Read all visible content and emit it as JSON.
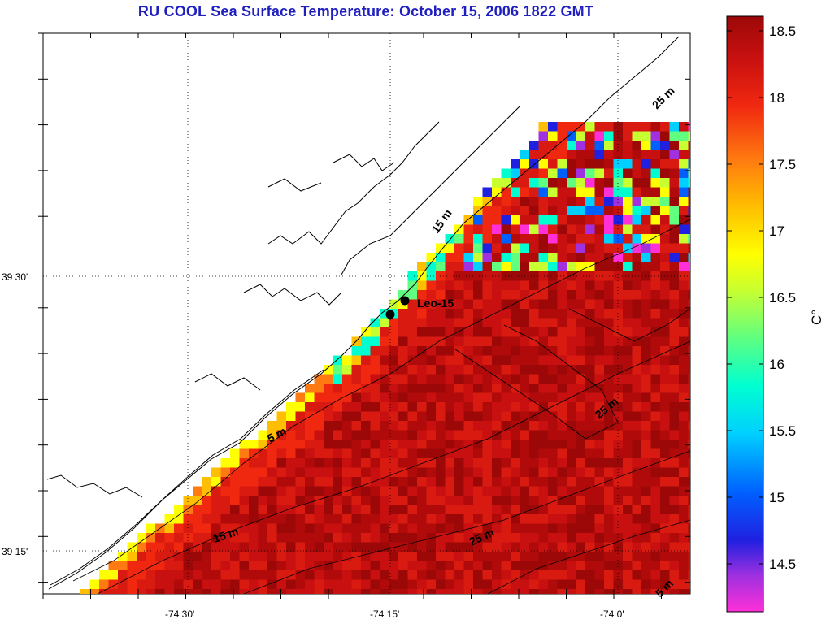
{
  "title": "RU COOL  Sea Surface Temperature:  October 15, 2006 1822 GMT",
  "map": {
    "lon_ticks": [
      "-74 30'",
      "-74 15'",
      "-74 0'"
    ],
    "lat_ticks": [
      "39 30'",
      "39 15'"
    ],
    "contour_labels": [
      "5 m",
      "15 m",
      "15 m",
      "25 m",
      "25 m",
      "25 m",
      "5 m"
    ],
    "station": {
      "name": "Leo-15"
    }
  },
  "colorbar": {
    "ticks": [
      "18.5",
      "18",
      "17.5",
      "17",
      "16.5",
      "16",
      "15.5",
      "15",
      "14.5"
    ],
    "unit": "C°",
    "range": [
      14.1,
      18.6
    ]
  },
  "colors": {
    "title": "#1f1fbf",
    "warm": "#d81a10",
    "hot": "#b00a0a",
    "mid": "#ff8c00",
    "cool": "#00e0ff",
    "cold": "#ff30c0"
  }
}
